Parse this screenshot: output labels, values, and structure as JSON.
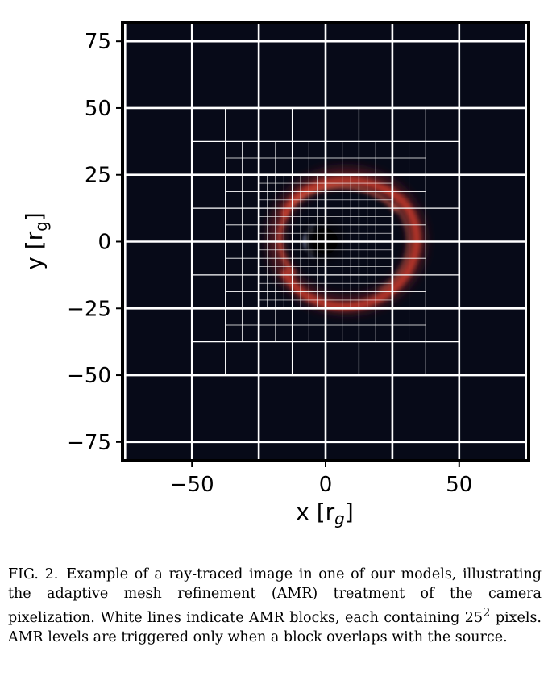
{
  "figure": {
    "background_color": "#070a18",
    "frame_color": "#000000",
    "grid_color": "#ffffff",
    "ring_color": "#c23a2a",
    "x_axis": {
      "label": "x [r",
      "label_sub": "g",
      "label_close": "]",
      "range": [
        -76,
        76
      ],
      "ticks": [
        -50,
        0,
        50
      ],
      "tick_labels": [
        "−50",
        "0",
        "50"
      ]
    },
    "y_axis": {
      "label": "y [r",
      "label_sub": "g",
      "label_close": "]",
      "range": [
        -82,
        82
      ],
      "ticks": [
        75,
        50,
        25,
        0,
        -25,
        -50,
        -75
      ],
      "tick_labels": [
        "75",
        "50",
        "25",
        "0",
        "−25",
        "−50",
        "−75"
      ]
    },
    "amr": {
      "level0_lines": [
        -75,
        -50,
        -25,
        0,
        25,
        50,
        75
      ],
      "level1_lines": [
        -37.5,
        -12.5,
        12.5,
        37.5
      ],
      "level2_lines": [
        -31.25,
        -18.75,
        -6.25,
        6.25,
        18.75,
        31.25
      ],
      "level3_lines": [
        -21.875,
        -15.625,
        -9.375,
        -3.125,
        3.125,
        9.375,
        15.625,
        21.875
      ]
    }
  },
  "caption": {
    "label": "FIG. 2.",
    "text_1": "Example of a ray-traced image in one of our models, illustrating the adaptive mesh refinement (AMR) treatment of the camera pixelization. White lines indicate AMR blocks, each containing 25",
    "superscript": "2",
    "text_2": " pixels. AMR levels are triggered only when a block overlaps with the source."
  }
}
